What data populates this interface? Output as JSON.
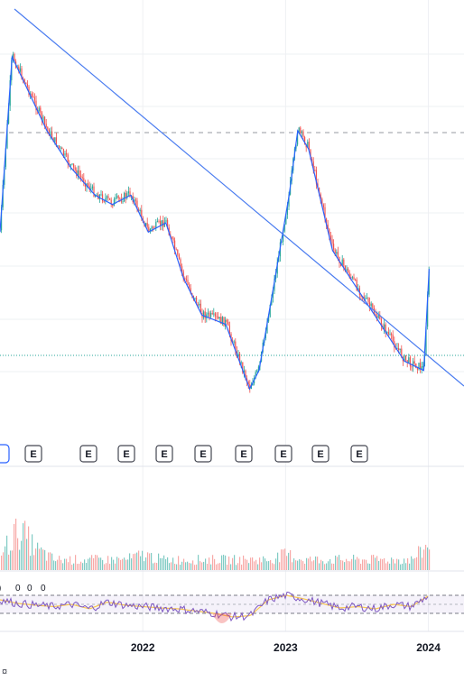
{
  "colors": {
    "up": "#26a69a",
    "down": "#ef5350",
    "ma": "#2962ff",
    "trendline": "#4a7cf0",
    "rsi": "#7e57c2",
    "rsi_ma": "#f9c74f",
    "grid": "#eef0f3",
    "dashed_level": "#9598a1",
    "dotted_level": "#26a69a"
  },
  "earnings_badges": [
    "",
    "E",
    "E",
    "E",
    "E",
    "E",
    "E",
    "E",
    "E",
    "E"
  ],
  "rsi_stub_labels": [
    "0",
    "0",
    "0"
  ],
  "bottom_glyph": "¤",
  "chart_data": {
    "type": "line",
    "x_axis": {
      "ticks": [
        "2022",
        "2023",
        "2024"
      ]
    },
    "trendline": {
      "from": "2021-02-20",
      "to": "2024-04-01"
    },
    "price_series": {
      "x": [
        "2021-01-01",
        "2021-02-01",
        "2021-03-01",
        "2021-05-01",
        "2021-07-01",
        "2021-09-01",
        "2021-10-15",
        "2021-12-01",
        "2022-01-15",
        "2022-03-01",
        "2022-04-15",
        "2022-06-01",
        "2022-08-01",
        "2022-10-01",
        "2022-10-25",
        "2022-12-01",
        "2023-01-10",
        "2023-02-01",
        "2023-03-01",
        "2023-05-01",
        "2023-07-01",
        "2023-09-01",
        "2023-11-01",
        "2023-12-20",
        "2024-01-03"
      ],
      "y": [
        22,
        60,
        55,
        44,
        36,
        30,
        28,
        30,
        22,
        24,
        12,
        4,
        2,
        -12,
        -8,
        10,
        30,
        44,
        40,
        18,
        10,
        2,
        -6,
        -8,
        14
      ]
    },
    "volume_series": [
      3,
      8,
      4,
      2,
      2,
      2,
      2,
      2,
      3,
      2,
      2,
      2,
      2,
      2,
      2,
      2,
      3,
      2,
      2,
      2,
      2,
      2,
      2,
      2,
      5
    ],
    "rsi_series": [
      60,
      52,
      48,
      45,
      50,
      40,
      55,
      48,
      45,
      42,
      40,
      35,
      30,
      22,
      25,
      60,
      70,
      62,
      52,
      42,
      45,
      40,
      50,
      45,
      70
    ]
  }
}
